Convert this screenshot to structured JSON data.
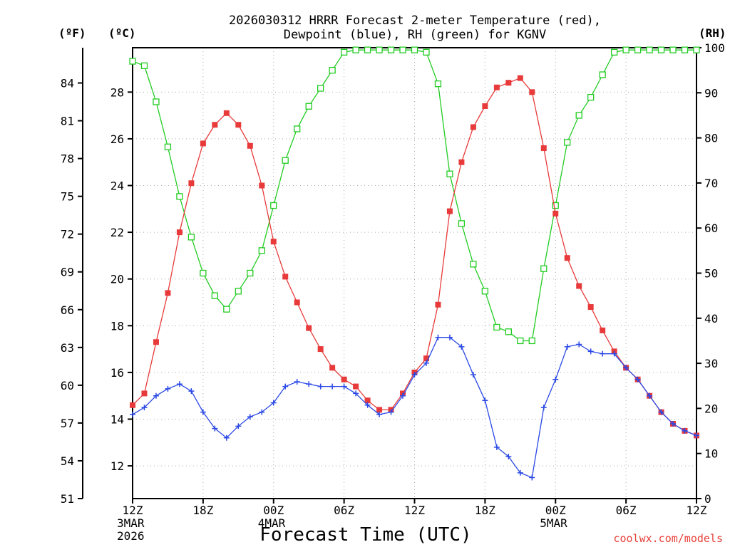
{
  "chart_data": {
    "type": "line",
    "title_line1": "2026030312 HRRR Forecast 2-meter Temperature (red),",
    "title_line2": "Dewpoint (blue), RH (green) for KGNV",
    "xlabel": "Forecast Time (UTC)",
    "credit": "coolwx.com/models",
    "unit_f": "(ºF)",
    "unit_c": "(ºC)",
    "unit_rh": "(RH)",
    "colors": {
      "temperature": "#e83a3a",
      "dewpoint": "#2a48e6",
      "rh": "#22cc22"
    },
    "x_hours": [
      0,
      1,
      2,
      3,
      4,
      5,
      6,
      7,
      8,
      9,
      10,
      11,
      12,
      13,
      14,
      15,
      16,
      17,
      18,
      19,
      20,
      21,
      22,
      23,
      24,
      25,
      26,
      27,
      28,
      29,
      30,
      31,
      32,
      33,
      34,
      35,
      36,
      37,
      38,
      39,
      40,
      41,
      42,
      43,
      44,
      45,
      46,
      47,
      48
    ],
    "x_ticks": [
      {
        "hour": 0,
        "lines": [
          "12Z",
          "3MAR",
          "2026"
        ]
      },
      {
        "hour": 6,
        "lines": [
          "18Z"
        ]
      },
      {
        "hour": 12,
        "lines": [
          "00Z",
          "4MAR"
        ]
      },
      {
        "hour": 18,
        "lines": [
          "06Z"
        ]
      },
      {
        "hour": 24,
        "lines": [
          "12Z"
        ]
      },
      {
        "hour": 30,
        "lines": [
          "18Z"
        ]
      },
      {
        "hour": 36,
        "lines": [
          "00Z",
          "5MAR"
        ]
      },
      {
        "hour": 42,
        "lines": [
          "06Z"
        ]
      },
      {
        "hour": 48,
        "lines": [
          "12Z"
        ]
      }
    ],
    "c_axis": {
      "range": [
        10.6,
        29.9
      ],
      "ticks": [
        12,
        14,
        16,
        18,
        20,
        22,
        24,
        26,
        28
      ]
    },
    "f_axis": {
      "range": [
        51,
        86.8
      ],
      "ticks": [
        51,
        54,
        57,
        60,
        63,
        66,
        69,
        72,
        75,
        78,
        81,
        84
      ]
    },
    "rh_axis": {
      "range": [
        0,
        100
      ],
      "ticks": [
        0,
        10,
        20,
        30,
        40,
        50,
        60,
        70,
        80,
        90,
        100
      ]
    },
    "series": [
      {
        "name": "Temperature",
        "unit": "C",
        "marker": "filled-square",
        "color": "#e83a3a",
        "values": [
          14.6,
          15.1,
          17.3,
          19.4,
          22.0,
          24.1,
          25.8,
          26.6,
          27.1,
          26.6,
          25.7,
          24.0,
          21.6,
          20.1,
          19.0,
          17.9,
          17.0,
          16.2,
          15.7,
          15.4,
          14.8,
          14.4,
          14.4,
          15.1,
          16.0,
          16.6,
          18.9,
          22.9,
          25.0,
          26.5,
          27.4,
          28.2,
          28.4,
          28.6,
          28.0,
          25.6,
          22.8,
          20.9,
          19.7,
          18.8,
          17.8,
          16.9,
          16.2,
          15.7,
          15.0,
          14.3,
          13.8,
          13.5,
          13.3
        ]
      },
      {
        "name": "Dewpoint",
        "unit": "C",
        "marker": "plus",
        "color": "#2a48e6",
        "values": [
          14.2,
          14.5,
          15.0,
          15.3,
          15.5,
          15.2,
          14.3,
          13.6,
          13.2,
          13.7,
          14.1,
          14.3,
          14.7,
          15.4,
          15.6,
          15.5,
          15.4,
          15.4,
          15.4,
          15.1,
          14.6,
          14.2,
          14.3,
          15.0,
          15.9,
          16.4,
          17.5,
          17.5,
          17.1,
          15.9,
          14.8,
          12.8,
          12.4,
          11.7,
          11.5,
          14.5,
          15.7,
          17.1,
          17.2,
          16.9,
          16.8,
          16.8,
          16.2,
          15.7,
          15.0,
          14.3,
          13.8,
          13.5,
          13.3
        ]
      },
      {
        "name": "RH",
        "unit": "%",
        "marker": "open-square",
        "color": "#22cc22",
        "values": [
          97,
          96,
          88,
          78,
          67,
          58,
          50,
          45,
          42,
          46,
          50,
          55,
          65,
          75,
          82,
          87,
          91,
          95,
          99,
          99.5,
          99.5,
          99.5,
          99.5,
          99.5,
          99.5,
          99,
          92,
          72,
          61,
          52,
          46,
          38,
          37,
          35,
          35,
          51,
          65,
          79,
          85,
          89,
          94,
          99,
          99.5,
          99.5,
          99.5,
          99.5,
          99.5,
          99.5,
          99.5
        ]
      }
    ]
  }
}
